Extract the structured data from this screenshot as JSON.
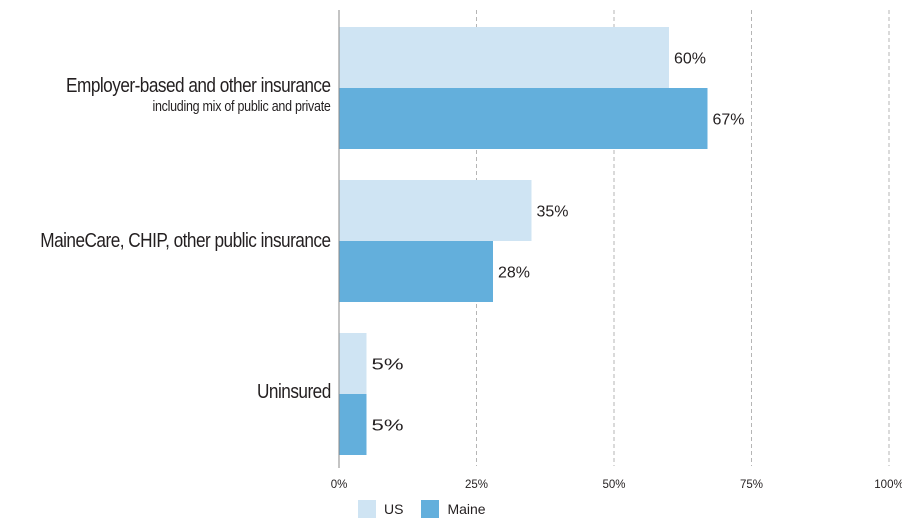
{
  "chart_data": {
    "type": "bar",
    "orientation": "horizontal",
    "categories": [
      "Employer-based and other insurance",
      "MaineCare, CHIP, other public insurance",
      "Uninsured"
    ],
    "category_sublabels": [
      "including mix of public and private",
      "",
      ""
    ],
    "series": [
      {
        "name": "US",
        "values": [
          60,
          35,
          5
        ],
        "color": "#cfe4f3"
      },
      {
        "name": "Maine",
        "values": [
          67,
          28,
          5
        ],
        "color": "#63afdc"
      }
    ],
    "data_labels": {
      "US": [
        "60%",
        "35%",
        "5%"
      ],
      "Maine": [
        "67%",
        "28%",
        "5%"
      ]
    },
    "x_ticks": [
      "0%",
      "25%",
      "50%",
      "75%",
      "100%"
    ],
    "xlim": [
      0,
      100
    ],
    "title": "",
    "xlabel": "",
    "ylabel": "",
    "grid": "vertical-dashed",
    "legend_position": "bottom"
  }
}
